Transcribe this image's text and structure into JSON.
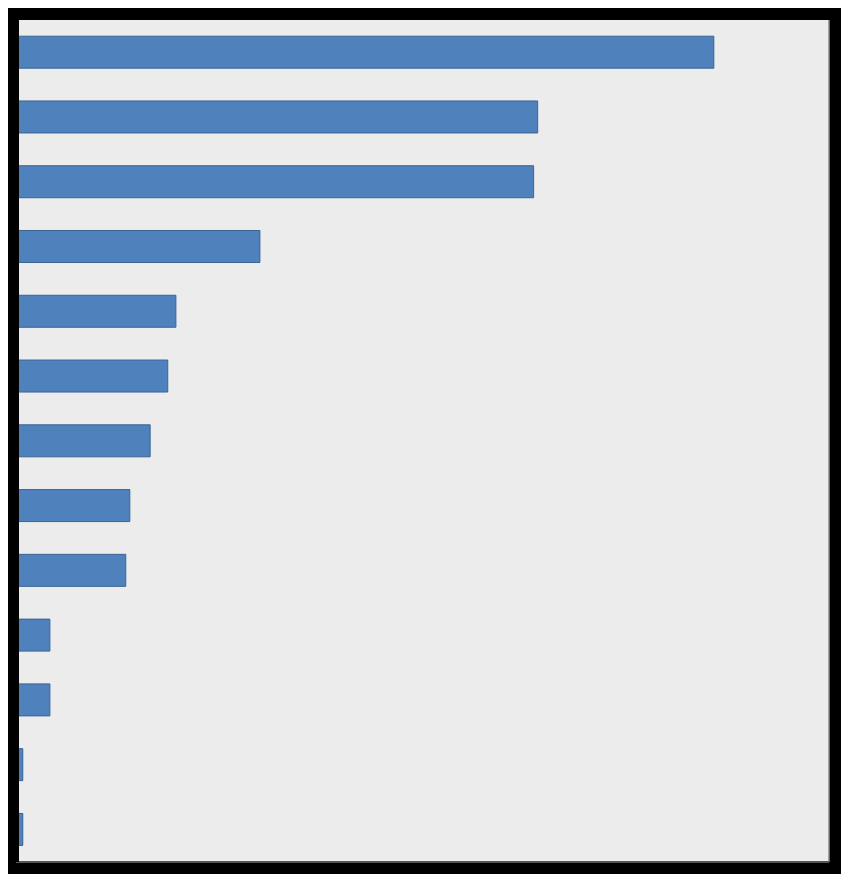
{
  "chart_data": {
    "type": "bar",
    "orientation": "horizontal",
    "categories": [
      null,
      null,
      null,
      null,
      null,
      null,
      null,
      null,
      null,
      null,
      null,
      null,
      null
    ],
    "values": [
      5.15,
      3.85,
      3.82,
      1.8,
      1.18,
      1.12,
      0.99,
      0.84,
      0.81,
      0.25,
      0.25,
      0.05,
      0.05
    ],
    "color": "#4f81bd",
    "xlim": [
      0,
      6
    ],
    "xticks": [
      0,
      1,
      2,
      3,
      4,
      5,
      6
    ],
    "grid": true,
    "tick_labels": false
  }
}
